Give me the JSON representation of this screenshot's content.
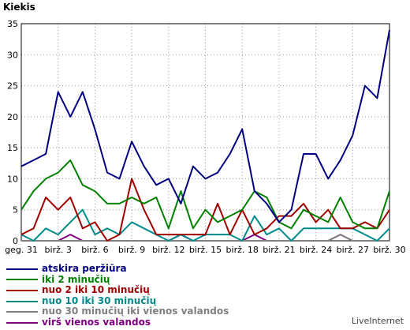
{
  "watermark": "LiveInternet",
  "chart_data": {
    "type": "line",
    "title": "",
    "ylabel": "Kiekis",
    "xlabel": "",
    "ylim": [
      0,
      35
    ],
    "yticks": [
      0,
      5,
      10,
      15,
      20,
      25,
      30,
      35
    ],
    "grid": true,
    "legend_position": "bottom",
    "x_tick_labels": [
      "geg. 31",
      "birž. 3",
      "birž. 6",
      "birž. 9",
      "birž. 12",
      "birž. 15",
      "birž. 18",
      "birž. 21",
      "birž. 24",
      "birž. 27",
      "birž. 30"
    ],
    "x": [
      "geg. 31",
      "birž. 1",
      "birž. 2",
      "birž. 3",
      "birž. 4",
      "birž. 5",
      "birž. 6",
      "birž. 7",
      "birž. 8",
      "birž. 9",
      "birž. 10",
      "birž. 11",
      "birž. 12",
      "birž. 13",
      "birž. 14",
      "birž. 15",
      "birž. 16",
      "birž. 17",
      "birž. 18",
      "birž. 19",
      "birž. 20",
      "birž. 21",
      "birž. 22",
      "birž. 23",
      "birž. 24",
      "birž. 25",
      "birž. 26",
      "birž. 27",
      "birž. 28",
      "birž. 29",
      "birž. 30"
    ],
    "series": [
      {
        "name": "atskira peržiūra",
        "color": "#000080",
        "values": [
          12,
          13,
          14,
          24,
          20,
          24,
          18,
          11,
          10,
          16,
          12,
          9,
          10,
          6,
          12,
          10,
          11,
          14,
          18,
          8,
          6,
          3,
          5,
          14,
          14,
          10,
          13,
          17,
          25,
          23,
          34
        ]
      },
      {
        "name": "iki 2 minučių",
        "color": "#008000",
        "values": [
          5,
          8,
          10,
          11,
          13,
          9,
          8,
          6,
          6,
          7,
          6,
          7,
          2,
          8,
          2,
          5,
          3,
          4,
          5,
          8,
          7,
          3,
          2,
          5,
          4,
          3,
          7,
          3,
          2,
          2,
          8
        ]
      },
      {
        "name": "nuo 2 iki 10 minučių",
        "color": "#a00000",
        "values": [
          1,
          2,
          7,
          5,
          7,
          2,
          3,
          0,
          1,
          10,
          5,
          1,
          1,
          1,
          1,
          1,
          6,
          1,
          5,
          1,
          2,
          4,
          4,
          6,
          3,
          5,
          2,
          2,
          3,
          2,
          5
        ]
      },
      {
        "name": "nuo 10 iki 30 minučių",
        "color": "#008b8b",
        "values": [
          1,
          0,
          2,
          1,
          3,
          5,
          1,
          2,
          1,
          3,
          2,
          1,
          0,
          1,
          0,
          1,
          1,
          1,
          0,
          4,
          1,
          2,
          0,
          2,
          2,
          2,
          2,
          2,
          1,
          0,
          2
        ]
      },
      {
        "name": "nuo 30 minučių iki vienos valandos",
        "color": "#808080",
        "values": [
          0,
          0,
          0,
          0,
          0,
          0,
          0,
          0,
          0,
          0,
          0,
          0,
          0,
          0,
          0,
          0,
          0,
          0,
          0,
          0,
          0,
          0,
          0,
          0,
          0,
          0,
          1,
          0,
          0,
          0,
          0
        ]
      },
      {
        "name": "virš vienos valandos",
        "color": "#800080",
        "values": [
          0,
          0,
          0,
          0,
          1,
          0,
          0,
          0,
          0,
          0,
          0,
          0,
          0,
          1,
          0,
          0,
          0,
          0,
          0,
          1,
          0,
          0,
          0,
          0,
          0,
          0,
          1,
          0,
          0,
          0,
          0
        ]
      }
    ]
  }
}
